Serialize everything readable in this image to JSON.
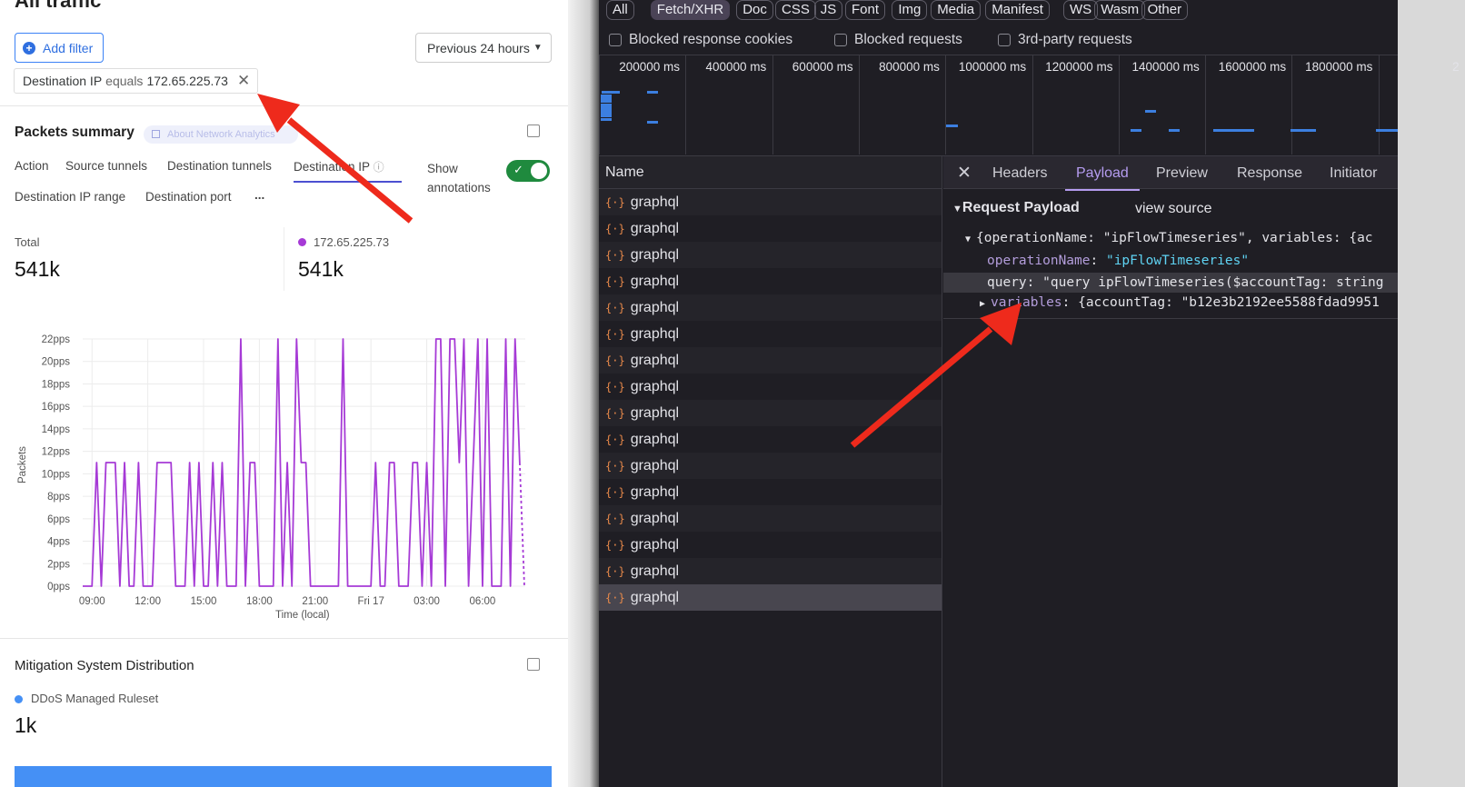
{
  "left": {
    "title_partial": "All traffic",
    "add_filter": "Add filter",
    "time_range": "Previous 24 hours",
    "filter_chip": {
      "field": "Destination IP",
      "operator": "equals",
      "value": "172.65.225.73"
    },
    "packets": {
      "title": "Packets summary",
      "about_link": "About Network Analytics",
      "tabs": [
        "Action",
        "Source tunnels",
        "Destination tunnels",
        "Destination IP",
        "Destination IP range",
        "Destination port",
        "..."
      ],
      "active_tab": "Destination IP",
      "show_annotations": "Show annotations",
      "annotations_on": true,
      "total_label": "Total",
      "total_value": "541k",
      "series_label": "172.65.225.73",
      "series_value": "541k",
      "series_color": "#a63ad6"
    },
    "mitigation": {
      "title": "Mitigation System Distribution",
      "legend": "DDoS Managed Ruleset",
      "value": "1k",
      "bar_color": "#4590f5",
      "bar_fraction": 1
    }
  },
  "chart_data": {
    "type": "line",
    "ylabel": "Packets",
    "xlabel": "Time (local)",
    "yticks": [
      "0pps",
      "2pps",
      "4pps",
      "6pps",
      "8pps",
      "10pps",
      "12pps",
      "14pps",
      "16pps",
      "18pps",
      "20pps",
      "22pps"
    ],
    "ylim": [
      0,
      22
    ],
    "xticks": [
      "09:00",
      "12:00",
      "15:00",
      "18:00",
      "21:00",
      "Fri 17",
      "03:00",
      "06:00"
    ],
    "grid": true,
    "series": [
      {
        "color": "#a63ad6",
        "points": [
          [
            "Thu 08:30",
            0
          ],
          [
            "Thu 09:00",
            0
          ],
          [
            "Thu 09:15",
            11
          ],
          [
            "Thu 09:30",
            0
          ],
          [
            "Thu 09:45",
            11
          ],
          [
            "Thu 10:15",
            11
          ],
          [
            "Thu 10:30",
            0
          ],
          [
            "Thu 10:45",
            11
          ],
          [
            "Thu 11:00",
            0
          ],
          [
            "Thu 11:15",
            0
          ],
          [
            "Thu 11:30",
            11
          ],
          [
            "Thu 11:45",
            0
          ],
          [
            "Thu 12:15",
            0
          ],
          [
            "Thu 12:30",
            11
          ],
          [
            "Thu 13:15",
            11
          ],
          [
            "Thu 13:30",
            0
          ],
          [
            "Thu 14:00",
            0
          ],
          [
            "Thu 14:15",
            11
          ],
          [
            "Thu 14:30",
            0
          ],
          [
            "Thu 14:45",
            11
          ],
          [
            "Thu 15:00",
            0
          ],
          [
            "Thu 15:15",
            0
          ],
          [
            "Thu 15:30",
            11
          ],
          [
            "Thu 15:45",
            0
          ],
          [
            "Thu 16:00",
            11
          ],
          [
            "Thu 16:15",
            0
          ],
          [
            "Thu 16:45",
            0
          ],
          [
            "Thu 17:00",
            22
          ],
          [
            "Thu 17:15",
            0
          ],
          [
            "Thu 17:30",
            11
          ],
          [
            "Thu 17:45",
            11
          ],
          [
            "Thu 18:00",
            0
          ],
          [
            "Thu 18:45",
            0
          ],
          [
            "Thu 19:00",
            22
          ],
          [
            "Thu 19:15",
            0
          ],
          [
            "Thu 19:30",
            11
          ],
          [
            "Thu 19:45",
            0
          ],
          [
            "Thu 20:00",
            22
          ],
          [
            "Thu 20:15",
            11
          ],
          [
            "Thu 20:30",
            11
          ],
          [
            "Thu 20:45",
            0
          ],
          [
            "Thu 22:15",
            0
          ],
          [
            "Thu 22:30",
            22
          ],
          [
            "Thu 22:45",
            0
          ],
          [
            "Fri 00:00",
            0
          ],
          [
            "Fri 00:15",
            11
          ],
          [
            "Fri 00:30",
            0
          ],
          [
            "Fri 00:45",
            0
          ],
          [
            "Fri 01:00",
            11
          ],
          [
            "Fri 01:15",
            11
          ],
          [
            "Fri 01:30",
            0
          ],
          [
            "Fri 02:00",
            0
          ],
          [
            "Fri 02:15",
            11
          ],
          [
            "Fri 02:30",
            11
          ],
          [
            "Fri 02:45",
            0
          ],
          [
            "Fri 03:00",
            11
          ],
          [
            "Fri 03:15",
            0
          ],
          [
            "Fri 03:30",
            22
          ],
          [
            "Fri 03:45",
            22
          ],
          [
            "Fri 04:00",
            0
          ],
          [
            "Fri 04:15",
            22
          ],
          [
            "Fri 04:30",
            22
          ],
          [
            "Fri 04:45",
            11
          ],
          [
            "Fri 05:00",
            22
          ],
          [
            "Fri 05:15",
            0
          ],
          [
            "Fri 05:30",
            11
          ],
          [
            "Fri 05:45",
            22
          ],
          [
            "Fri 06:00",
            0
          ],
          [
            "Fri 06:15",
            22
          ],
          [
            "Fri 06:30",
            0
          ],
          [
            "Fri 07:00",
            0
          ],
          [
            "Fri 07:15",
            22
          ],
          [
            "Fri 07:30",
            0
          ],
          [
            "Fri 07:45",
            22
          ],
          [
            "Fri 08:00",
            11
          ]
        ],
        "incomplete_tail": [
          "Fri 08:15",
          0
        ]
      }
    ]
  },
  "devtools": {
    "filters": [
      "All",
      "Fetch/XHR",
      "Doc",
      "CSS",
      "JS",
      "Font",
      "Img",
      "Media",
      "Manifest",
      "WS",
      "Wasm",
      "Other"
    ],
    "active_filter": "Fetch/XHR",
    "checkboxes": [
      "Blocked response cookies",
      "Blocked requests",
      "3rd-party requests"
    ],
    "timeline_ticks": [
      "200000 ms",
      "400000 ms",
      "600000 ms",
      "800000 ms",
      "1000000 ms",
      "1200000 ms",
      "1400000 ms",
      "1600000 ms",
      "1800000 ms",
      "2"
    ],
    "name_header": "Name",
    "requests": [
      "graphql",
      "graphql",
      "graphql",
      "graphql",
      "graphql",
      "graphql",
      "graphql",
      "graphql",
      "graphql",
      "graphql",
      "graphql",
      "graphql",
      "graphql",
      "graphql",
      "graphql",
      "graphql"
    ],
    "detail_tabs": [
      "Headers",
      "Payload",
      "Preview",
      "Response",
      "Initiator"
    ],
    "active_detail_tab": "Payload",
    "payload": {
      "title": "Request Payload",
      "view_source": "view source",
      "summary": "{operationName: \"ipFlowTimeseries\", variables: {ac",
      "op_key": "operationName",
      "op_val": "\"ipFlowTimeseries\"",
      "query_key": "query",
      "query_val": "\"query ipFlowTimeseries($accountTag: string",
      "vars_key": "variables",
      "vars_val": "{accountTag: \"b12e3b2192ee5588fdad9951"
    }
  }
}
